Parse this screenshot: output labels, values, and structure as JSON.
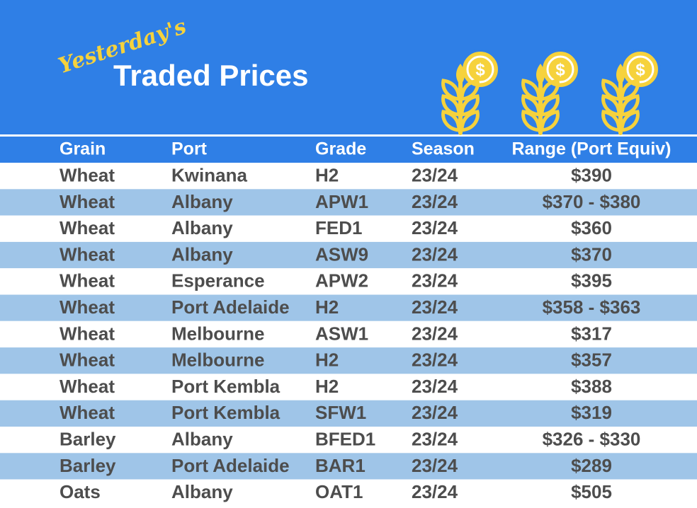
{
  "header": {
    "script": "Yesterday's",
    "title": "Traded Prices"
  },
  "table": {
    "columns": [
      "Grain",
      "Port",
      "Grade",
      "Season",
      "Range (Port Equiv)"
    ],
    "rows": [
      [
        "Wheat",
        "Kwinana",
        "H2",
        "23/24",
        "$390"
      ],
      [
        "Wheat",
        "Albany",
        "APW1",
        "23/24",
        "$370 - $380"
      ],
      [
        "Wheat",
        "Albany",
        "FED1",
        "23/24",
        "$360"
      ],
      [
        "Wheat",
        "Albany",
        "ASW9",
        "23/24",
        "$370"
      ],
      [
        "Wheat",
        "Esperance",
        "APW2",
        "23/24",
        "$395"
      ],
      [
        "Wheat",
        "Port Adelaide",
        "H2",
        "23/24",
        "$358 - $363"
      ],
      [
        "Wheat",
        "Melbourne",
        "ASW1",
        "23/24",
        "$317"
      ],
      [
        "Wheat",
        "Melbourne",
        "H2",
        "23/24",
        "$357"
      ],
      [
        "Wheat",
        "Port Kembla",
        "H2",
        "23/24",
        "$388"
      ],
      [
        "Wheat",
        "Port Kembla",
        "SFW1",
        "23/24",
        "$319"
      ],
      [
        "Barley",
        "Albany",
        "BFED1",
        "23/24",
        "$326 - $330"
      ],
      [
        "Barley",
        "Port Adelaide",
        "BAR1",
        "23/24",
        "$289"
      ],
      [
        "Oats",
        "Albany",
        "OAT1",
        "23/24",
        "$505"
      ]
    ]
  }
}
